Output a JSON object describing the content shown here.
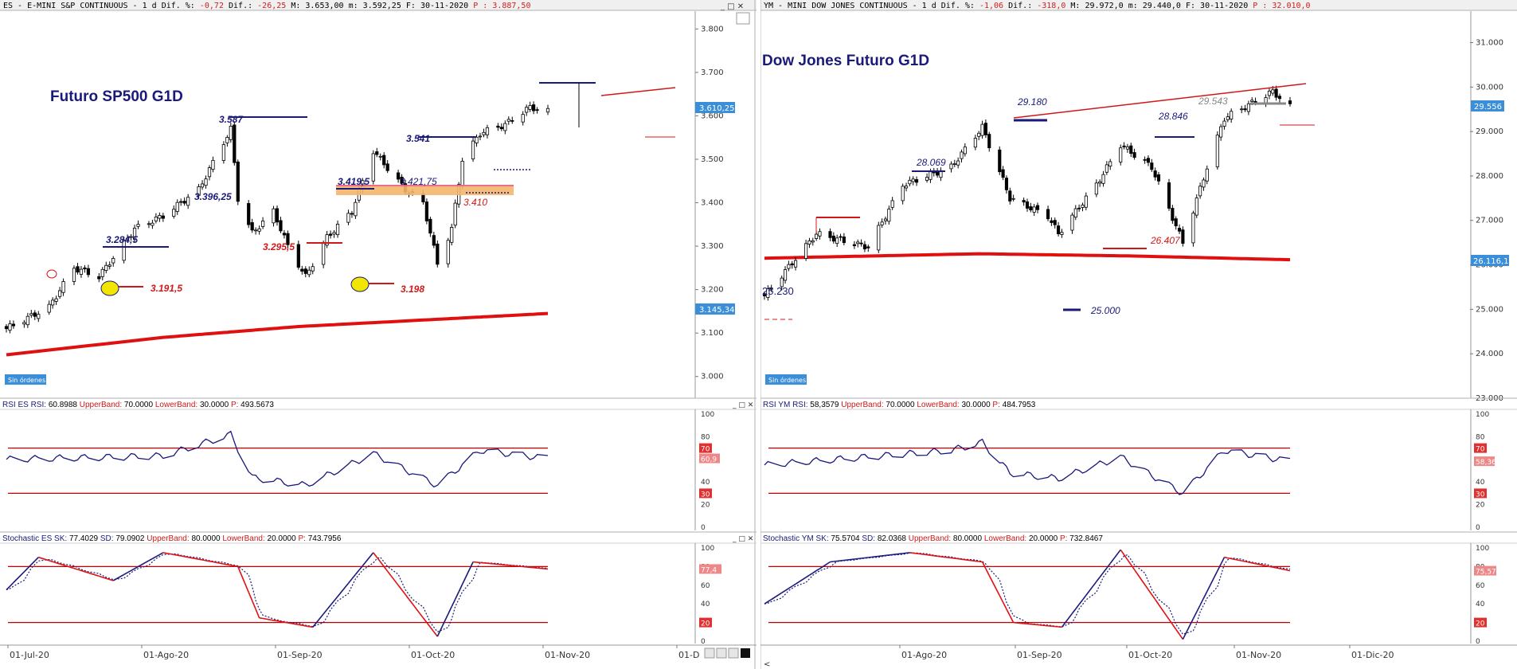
{
  "panels": [
    {
      "id": "es",
      "header": {
        "symbol": "ES - E-MINI S&P CONTINUOUS -  1 d",
        "dif_pct_label": "Dif. %:",
        "dif_pct": "-0,72",
        "dif_label": "Dif.:",
        "dif": "-26,25",
        "max_label": "M:",
        "max": "3.653,00",
        "min_label": "m:",
        "min": "3.592,25",
        "date_label": "F:",
        "date": "30-11-2020",
        "p_label": "P :",
        "p": "3.887,50"
      },
      "title": "Futuro SP500 G1D",
      "orders_badge": "Sin órdenes",
      "price_ticks": [
        "3.800",
        "3.700",
        "3.600",
        "3.500",
        "3.400",
        "3.300",
        "3.200",
        "3.100",
        "3.000"
      ],
      "price_tag": "3.610,25",
      "ma_tag": "3.145,34",
      "annotations": [
        "3.587",
        "3.541",
        "3.396,25",
        "3.419,5",
        "3.421,75",
        "3.284,5",
        "3.295,5",
        "3.410",
        "3.191,5",
        "3.198"
      ],
      "rsi_header": {
        "name": "RSI ES",
        "rsi_label": "RSI:",
        "rsi": "60.8988",
        "ub_label": "UpperBand:",
        "ub": "70.0000",
        "lb_label": "LowerBand:",
        "lb": "30.0000",
        "p_label": "P:",
        "p": "493.5673"
      },
      "rsi_ticks": [
        "100",
        "80",
        "70",
        "60",
        "40",
        "30",
        "20",
        "0"
      ],
      "rsi_tag": "60,9",
      "stoch_header": {
        "name": "Stochastic ES",
        "sk_label": "SK:",
        "sk": "77.4029",
        "sd_label": "SD:",
        "sd": "79.0902",
        "ub_label": "UpperBand:",
        "ub": "80.0000",
        "lb_label": "LowerBand:",
        "lb": "20.0000",
        "p_label": "P:",
        "p": "743.7956"
      },
      "stoch_ticks": [
        "100",
        "80",
        "60",
        "40",
        "20",
        "0"
      ],
      "stoch_tag": "77,4",
      "dates": [
        "01-Jul-20",
        "01-Ago-20",
        "01-Sep-20",
        "01-Oct-20",
        "01-Nov-20",
        "01-D"
      ]
    },
    {
      "id": "ym",
      "header": {
        "symbol": "YM - MINI DOW JONES CONTINUOUS -  1 d",
        "dif_pct_label": "Dif. %:",
        "dif_pct": "-1,06",
        "dif_label": "Dif.:",
        "dif": "-318,0",
        "max_label": "M:",
        "max": "29.972,0",
        "min_label": "m:",
        "min": "29.440,0",
        "date_label": "F:",
        "date": "30-11-2020",
        "p_label": "P :",
        "p": "32.010,0"
      },
      "title": "Dow Jones Futuro G1D",
      "orders_badge": "Sin órdenes",
      "price_ticks": [
        "31.000",
        "30.000",
        "29.000",
        "28.000",
        "27.000",
        "26.000",
        "25.000",
        "24.000",
        "23.000"
      ],
      "price_tag": "29.556",
      "ma_tag": "26.116,1",
      "annotations": [
        "29.180",
        "29.543",
        "28.846",
        "28.069",
        "26.407",
        "25.230",
        "25.000"
      ],
      "rsi_header": {
        "name": "RSI YM",
        "rsi_label": "RSI:",
        "rsi": "58,3579",
        "ub_label": "UpperBand:",
        "ub": "70.0000",
        "lb_label": "LowerBand:",
        "lb": "30.0000",
        "p_label": "P:",
        "p": "484.7953"
      },
      "rsi_ticks": [
        "100",
        "80",
        "70",
        "60",
        "40",
        "30",
        "20",
        "0"
      ],
      "rsi_tag": "58,36",
      "stoch_header": {
        "name": "Stochastic YM",
        "sk_label": "SK:",
        "sk": "75.5704",
        "sd_label": "SD:",
        "sd": "82.0368",
        "ub_label": "UpperBand:",
        "ub": "80.0000",
        "lb_label": "LowerBand:",
        "lb": "20.0000",
        "p_label": "P:",
        "p": "732.8467"
      },
      "stoch_ticks": [
        "100",
        "80",
        "60",
        "40",
        "20",
        "0"
      ],
      "stoch_tag": "75,57",
      "dates": [
        "01-Ago-20",
        "01-Sep-20",
        "01-Oct-20",
        "01-Nov-20",
        "01-Dic-20"
      ]
    }
  ],
  "colors": {
    "candle": "#000000",
    "ma": "#e01010",
    "rsi": "#1a1a7a",
    "bands": "#c00000",
    "annotation_blue": "#1a1a7a",
    "annotation_red": "#d01818",
    "tag_blue": "#3a8fd8",
    "tag_red": "#e03030"
  },
  "chart_data": [
    {
      "type": "candlestick",
      "title": "Futuro SP500 G1D",
      "ylim": [
        2950,
        3830
      ],
      "y_ticks": [
        3000,
        3100,
        3200,
        3300,
        3400,
        3500,
        3600,
        3700,
        3800
      ],
      "close_anchors": [
        {
          "date": "2020-07-01",
          "value": 3110
        },
        {
          "date": "2020-07-13",
          "value": 3160
        },
        {
          "date": "2020-07-20",
          "value": 3250
        },
        {
          "date": "2020-07-27",
          "value": 3230
        },
        {
          "date": "2020-08-06",
          "value": 3340
        },
        {
          "date": "2020-08-14",
          "value": 3370
        },
        {
          "date": "2020-08-24",
          "value": 3430
        },
        {
          "date": "2020-09-02",
          "value": 3570
        },
        {
          "date": "2020-09-04",
          "value": 3410
        },
        {
          "date": "2020-09-08",
          "value": 3330
        },
        {
          "date": "2020-09-14",
          "value": 3380
        },
        {
          "date": "2020-09-18",
          "value": 3300
        },
        {
          "date": "2020-09-23",
          "value": 3230
        },
        {
          "date": "2020-09-29",
          "value": 3320
        },
        {
          "date": "2020-10-06",
          "value": 3380
        },
        {
          "date": "2020-10-12",
          "value": 3520
        },
        {
          "date": "2020-10-21",
          "value": 3430
        },
        {
          "date": "2020-10-26",
          "value": 3400
        },
        {
          "date": "2020-10-30",
          "value": 3260
        },
        {
          "date": "2020-11-03",
          "value": 3340
        },
        {
          "date": "2020-11-06",
          "value": 3500
        },
        {
          "date": "2020-11-11",
          "value": 3560
        },
        {
          "date": "2020-11-18",
          "value": 3580
        },
        {
          "date": "2020-11-25",
          "value": 3620
        },
        {
          "date": "2020-11-30",
          "value": 3610
        }
      ],
      "ma": [
        {
          "date": "2020-07-01",
          "value": 3050
        },
        {
          "date": "2020-08-14",
          "value": 3090
        },
        {
          "date": "2020-09-21",
          "value": 3115
        },
        {
          "date": "2020-10-26",
          "value": 3130
        },
        {
          "date": "2020-11-30",
          "value": 3145
        }
      ],
      "rsi": [
        {
          "date": "2020-07-01",
          "value": 60
        },
        {
          "date": "2020-08-14",
          "value": 63
        },
        {
          "date": "2020-09-02",
          "value": 82
        },
        {
          "date": "2020-09-08",
          "value": 44
        },
        {
          "date": "2020-09-23",
          "value": 37
        },
        {
          "date": "2020-10-12",
          "value": 65
        },
        {
          "date": "2020-10-30",
          "value": 37
        },
        {
          "date": "2020-11-11",
          "value": 68
        },
        {
          "date": "2020-11-30",
          "value": 60.9
        }
      ],
      "stoch_sk": [
        {
          "date": "2020-07-01",
          "value": 55
        },
        {
          "date": "2020-07-10",
          "value": 90
        },
        {
          "date": "2020-07-31",
          "value": 65
        },
        {
          "date": "2020-08-14",
          "value": 95
        },
        {
          "date": "2020-09-04",
          "value": 80
        },
        {
          "date": "2020-09-10",
          "value": 25
        },
        {
          "date": "2020-09-25",
          "value": 15
        },
        {
          "date": "2020-10-12",
          "value": 95
        },
        {
          "date": "2020-10-30",
          "value": 5
        },
        {
          "date": "2020-11-09",
          "value": 85
        },
        {
          "date": "2020-11-30",
          "value": 77.4
        }
      ]
    },
    {
      "type": "candlestick",
      "title": "Dow Jones Futuro G1D",
      "ylim": [
        23000,
        31600
      ],
      "y_ticks": [
        23000,
        24000,
        25000,
        26000,
        27000,
        28000,
        29000,
        30000,
        31000
      ],
      "close_anchors": [
        {
          "date": "2020-07-01",
          "value": 25300
        },
        {
          "date": "2020-07-16",
          "value": 26700
        },
        {
          "date": "2020-07-31",
          "value": 26400
        },
        {
          "date": "2020-08-10",
          "value": 27800
        },
        {
          "date": "2020-08-24",
          "value": 28200
        },
        {
          "date": "2020-09-02",
          "value": 29100
        },
        {
          "date": "2020-09-10",
          "value": 27500
        },
        {
          "date": "2020-09-21",
          "value": 27100
        },
        {
          "date": "2020-09-24",
          "value": 26700
        },
        {
          "date": "2020-10-05",
          "value": 27800
        },
        {
          "date": "2020-10-12",
          "value": 28700
        },
        {
          "date": "2020-10-21",
          "value": 28200
        },
        {
          "date": "2020-10-30",
          "value": 26500
        },
        {
          "date": "2020-11-06",
          "value": 28200
        },
        {
          "date": "2020-11-11",
          "value": 29300
        },
        {
          "date": "2020-11-25",
          "value": 29900
        },
        {
          "date": "2020-11-30",
          "value": 29556
        }
      ],
      "ma": [
        {
          "date": "2020-07-01",
          "value": 26150
        },
        {
          "date": "2020-09-01",
          "value": 26250
        },
        {
          "date": "2020-10-15",
          "value": 26200
        },
        {
          "date": "2020-11-30",
          "value": 26116
        }
      ],
      "rsi": [
        {
          "date": "2020-07-01",
          "value": 55
        },
        {
          "date": "2020-08-24",
          "value": 68
        },
        {
          "date": "2020-09-02",
          "value": 75
        },
        {
          "date": "2020-09-10",
          "value": 48
        },
        {
          "date": "2020-09-24",
          "value": 43
        },
        {
          "date": "2020-10-12",
          "value": 62
        },
        {
          "date": "2020-10-30",
          "value": 30
        },
        {
          "date": "2020-11-11",
          "value": 68
        },
        {
          "date": "2020-11-30",
          "value": 58.36
        }
      ],
      "stoch_sk": [
        {
          "date": "2020-07-01",
          "value": 40
        },
        {
          "date": "2020-07-20",
          "value": 85
        },
        {
          "date": "2020-08-12",
          "value": 95
        },
        {
          "date": "2020-09-02",
          "value": 85
        },
        {
          "date": "2020-09-11",
          "value": 20
        },
        {
          "date": "2020-09-25",
          "value": 15
        },
        {
          "date": "2020-10-12",
          "value": 98
        },
        {
          "date": "2020-10-30",
          "value": 2
        },
        {
          "date": "2020-11-11",
          "value": 90
        },
        {
          "date": "2020-11-30",
          "value": 75.57
        }
      ]
    }
  ]
}
